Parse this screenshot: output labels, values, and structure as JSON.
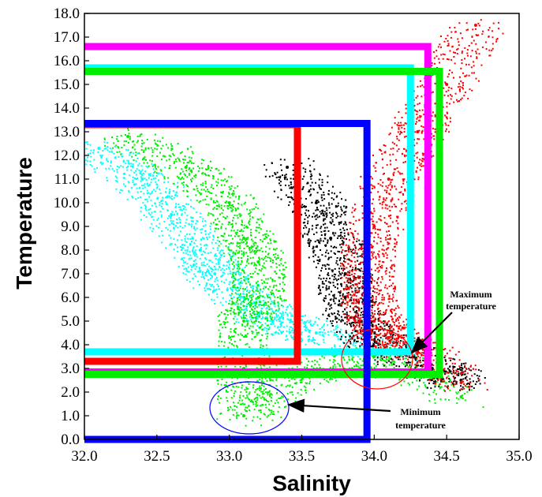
{
  "chart_data": {
    "type": "scatter",
    "xlabel": "Salinity",
    "ylabel": "Temperature",
    "xlim": [
      32.0,
      35.0
    ],
    "ylim": [
      0.0,
      18.0
    ],
    "x_ticks": [
      "32.0",
      "32.5",
      "33.0",
      "33.5",
      "34.0",
      "34.5",
      "35.0"
    ],
    "y_ticks": [
      "0.0",
      "1.0",
      "2.0",
      "3.0",
      "4.0",
      "5.0",
      "6.0",
      "7.0",
      "8.0",
      "9.0",
      "10.0",
      "11.0",
      "12.0",
      "13.0",
      "14.0",
      "15.0",
      "16.0",
      "17.0",
      "18.0"
    ],
    "grid": false,
    "series": [
      {
        "color": "#00ffff",
        "points": [
          [
            32.1,
            12.3
          ],
          [
            32.4,
            11.0
          ],
          [
            32.6,
            9.5
          ],
          [
            32.8,
            8.0
          ],
          [
            32.9,
            7.0
          ],
          [
            33.1,
            6.0
          ],
          [
            33.3,
            5.0
          ],
          [
            33.6,
            4.5
          ],
          [
            34.2,
            3.7
          ]
        ]
      },
      {
        "color": "#00ee00",
        "points": [
          [
            32.3,
            12.8
          ],
          [
            32.7,
            11.5
          ],
          [
            33.0,
            10.0
          ],
          [
            33.1,
            8.5
          ],
          [
            33.2,
            7.5
          ],
          [
            33.2,
            6.0
          ],
          [
            33.1,
            5.0
          ],
          [
            33.1,
            3.0
          ],
          [
            33.1,
            1.0
          ],
          [
            33.5,
            2.8
          ],
          [
            34.0,
            3.5
          ],
          [
            34.6,
            1.8
          ]
        ]
      },
      {
        "color": "#000000",
        "points": [
          [
            33.4,
            11.5
          ],
          [
            33.6,
            10.0
          ],
          [
            33.7,
            8.5
          ],
          [
            33.8,
            7.0
          ],
          [
            33.8,
            6.0
          ],
          [
            33.9,
            5.0
          ],
          [
            34.0,
            4.2
          ],
          [
            34.4,
            3.0
          ],
          [
            34.6,
            2.5
          ]
        ]
      },
      {
        "color": "#ff0000",
        "points": [
          [
            34.7,
            17.5
          ],
          [
            34.5,
            15.0
          ],
          [
            34.3,
            13.0
          ],
          [
            34.1,
            11.0
          ],
          [
            34.0,
            9.0
          ],
          [
            33.95,
            7.5
          ],
          [
            33.95,
            6.0
          ],
          [
            34.0,
            5.0
          ],
          [
            34.1,
            4.3
          ],
          [
            34.3,
            3.8
          ],
          [
            34.6,
            2.4
          ]
        ]
      }
    ],
    "boxes": [
      {
        "color": "#ff00ff",
        "s_max": 34.37,
        "t_max": 16.6,
        "t_min": 2.85
      },
      {
        "color": "#00ffff",
        "s_max": 34.25,
        "t_max": 15.7,
        "t_min": 3.7
      },
      {
        "color": "#00ee00",
        "s_max": 34.45,
        "t_max": 15.55,
        "t_min": 2.75
      },
      {
        "color": "#ff0000",
        "s_max": 33.47,
        "t_max": 13.3,
        "t_min": 3.3
      },
      {
        "color": "#0000ff",
        "s_max": 33.95,
        "t_max": 13.35,
        "t_min": 0.0
      }
    ],
    "annotations": [
      {
        "label": "Maximum temperature",
        "lines": [
          "Maximum",
          "temperature"
        ],
        "ellipse_color": "#ff0000",
        "target_s": 34.08,
        "target_t": 3.25
      },
      {
        "label": "Minimum temperature",
        "lines": [
          "Minimum",
          "temperature"
        ],
        "ellipse_color": "#0000ff",
        "target_s": 33.15,
        "target_t": 1.45
      }
    ]
  }
}
